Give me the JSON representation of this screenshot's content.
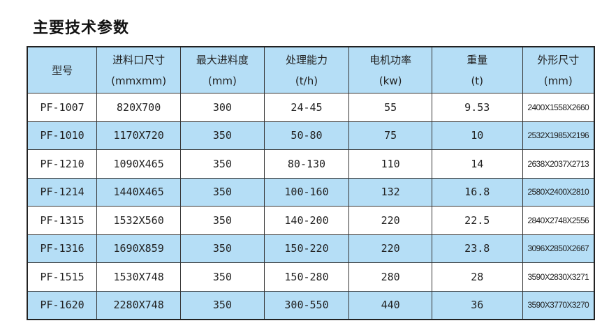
{
  "title": "主要技术参数",
  "colors": {
    "header_bg": "#b5def6",
    "stripe_bg": "#b5def6",
    "border": "#222222"
  },
  "columns": [
    {
      "label": "型号",
      "unit": ""
    },
    {
      "label": "进料口尺寸",
      "unit": "(mmxmm)"
    },
    {
      "label": "最大进料度",
      "unit": "(mm)"
    },
    {
      "label": "处理能力",
      "unit": "(t/h)"
    },
    {
      "label": "电机功率",
      "unit": "(kw)"
    },
    {
      "label": "重量",
      "unit": "(t)"
    },
    {
      "label": "外形尺寸",
      "unit": "(mm)"
    }
  ],
  "rows": [
    [
      "PF-1007",
      "820X700",
      "300",
      "24-45",
      "55",
      "9.53",
      "2400X1558X2660"
    ],
    [
      "PF-1010",
      "1170X720",
      "350",
      "50-80",
      "75",
      "10",
      "2532X1985X2196"
    ],
    [
      "PF-1210",
      "1090X465",
      "350",
      "80-130",
      "110",
      "14",
      "2638X2037X2713"
    ],
    [
      "PF-1214",
      "1440X465",
      "350",
      "100-160",
      "132",
      "16.8",
      "2580X2400X2810"
    ],
    [
      "PF-1315",
      "1532X560",
      "350",
      "140-200",
      "220",
      "22.5",
      "2840X2748X2556"
    ],
    [
      "PF-1316",
      "1690X859",
      "350",
      "150-220",
      "220",
      "23.8",
      "3096X2850X2667"
    ],
    [
      "PF-1515",
      "1530X748",
      "350",
      "150-280",
      "280",
      "28",
      "3590X2830X3271"
    ],
    [
      "PF-1620",
      "2280X748",
      "350",
      "300-550",
      "440",
      "36",
      "3590X3770X3270"
    ]
  ]
}
